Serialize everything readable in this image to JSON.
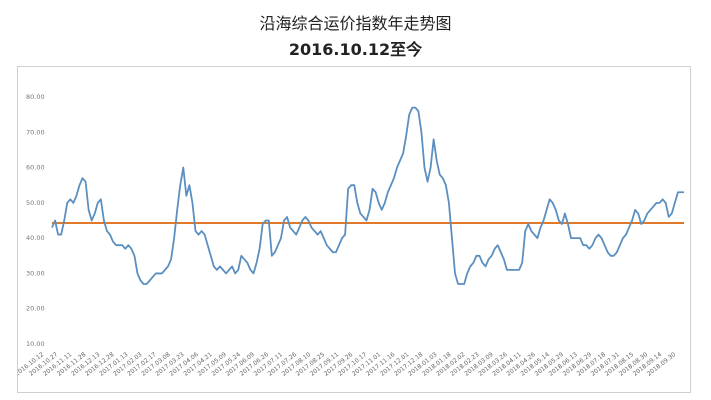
{
  "title": "沿海综合运价指数年走势图",
  "subtitle": "2016.10.12至今",
  "chart_data": {
    "type": "line",
    "title": "沿海综合运价指数年走势图",
    "subtitle": "2016.10.12至今",
    "ylim": [
      10,
      80
    ],
    "yticks": [
      "10.00",
      "20.00",
      "30.00",
      "40.00",
      "50.00",
      "60.00",
      "70.00",
      "80.00"
    ],
    "grid": false,
    "legend": "none",
    "xticks": [
      "2016.10.12",
      "2016.10.27",
      "2016.11.11",
      "2016.11.28",
      "2016.12.13",
      "2016.12.28",
      "2017.01.13",
      "2017.02.03",
      "2017.02.17",
      "2017.03.08",
      "2017.03.23",
      "2017.04.06",
      "2017.04.21",
      "2017.05.09",
      "2017.05.24",
      "2017.06.09",
      "2017.06.26",
      "2017.07.11",
      "2017.07.26",
      "2017.08.10",
      "2017.08.25",
      "2017.09.11",
      "2017.09.26",
      "2017.10.17",
      "2017.11.01",
      "2017.11.16",
      "2017.12.01",
      "2017.12.18",
      "2018.01.03",
      "2018.01.18",
      "2018.02.02",
      "2018.02.23",
      "2018.03.09",
      "2018.03.26",
      "2018.04.11",
      "2018.04.26",
      "2018.05.14",
      "2018.05.29",
      "2018.06.13",
      "2018.06.29",
      "2018.07.18",
      "2018.07.31",
      "2018.08.15",
      "2018.08.30",
      "2018.09.14",
      "2018.09.30"
    ],
    "series": [
      {
        "color": "#5b8fbf",
        "values": [
          43,
          45,
          41,
          41,
          45,
          50,
          51,
          50,
          52,
          55,
          57,
          56,
          48,
          45,
          47,
          50,
          51,
          45,
          42,
          41,
          39,
          38,
          38,
          38,
          37,
          38,
          37,
          35,
          30,
          28,
          27,
          27,
          28,
          29,
          30,
          30,
          30,
          31,
          32,
          34,
          40,
          48,
          55,
          60,
          52,
          55,
          50,
          42,
          41,
          42,
          41,
          38,
          35,
          32,
          31,
          32,
          31,
          30,
          31,
          32,
          30,
          31,
          35,
          34,
          33,
          31,
          30,
          33,
          37,
          44,
          45,
          45,
          35,
          36,
          38,
          40,
          45,
          46,
          43,
          42,
          41,
          43,
          45,
          46,
          45,
          43,
          42,
          41,
          42,
          40,
          38,
          37,
          36,
          36,
          38,
          40,
          41,
          54,
          55,
          55,
          50,
          47,
          46,
          45,
          48,
          54,
          53,
          50,
          48,
          50,
          53,
          55,
          57,
          60,
          62,
          64,
          69,
          75,
          77,
          77,
          76,
          70,
          60,
          56,
          60,
          68,
          62,
          58,
          57,
          55,
          50,
          40,
          30,
          27,
          27,
          27,
          30,
          32,
          33,
          35,
          35,
          33,
          32,
          34,
          35,
          37,
          38,
          36,
          34,
          31,
          31,
          31,
          31,
          31,
          33,
          42,
          44,
          42,
          41,
          40,
          43,
          45,
          48,
          51,
          50,
          48,
          45,
          44,
          47,
          44,
          40,
          40,
          40,
          40,
          38,
          38,
          37,
          38,
          40,
          41,
          40,
          38,
          36,
          35,
          35,
          36,
          38,
          40,
          41,
          43,
          45,
          48,
          47,
          44,
          45,
          47,
          48,
          49,
          50,
          50,
          51,
          50,
          46,
          47,
          50,
          53,
          53,
          53
        ]
      },
      {
        "color": "#e07a2a",
        "values": [
          44.3,
          44.3
        ]
      }
    ]
  }
}
